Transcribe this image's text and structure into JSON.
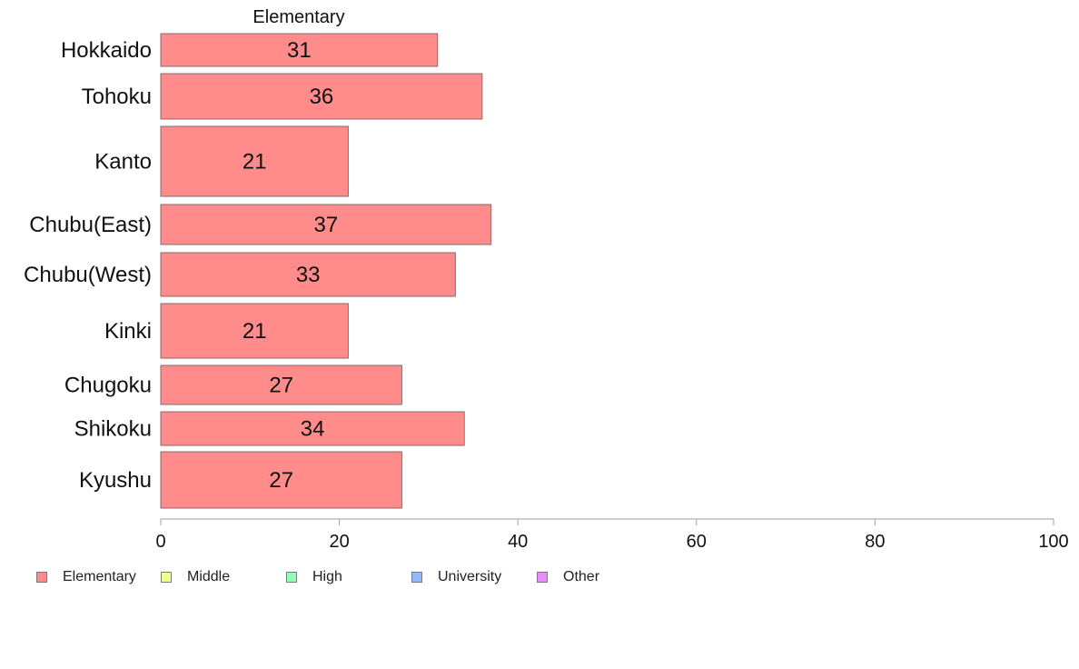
{
  "chart_data": {
    "type": "bar",
    "orientation": "horizontal",
    "title": "Elementary",
    "categories": [
      "Hokkaido",
      "Tohoku",
      "Kanto",
      "Chubu(East)",
      "Chubu(West)",
      "Kinki",
      "Chugoku",
      "Shikoku",
      "Kyushu"
    ],
    "series": [
      {
        "name": "Elementary",
        "values": [
          31,
          36,
          21,
          37,
          33,
          21,
          27,
          34,
          27
        ]
      }
    ],
    "data_labels": [
      "31",
      "36",
      "21",
      "37",
      "33",
      "21",
      "27",
      "34",
      "27"
    ],
    "xlim": [
      0,
      100
    ],
    "x_ticks": [
      0,
      20,
      40,
      60,
      80,
      100
    ],
    "grid": false,
    "legend_position": "bottom-left"
  },
  "legend": {
    "items": [
      {
        "label": "Elementary",
        "color": "#ff8b8b"
      },
      {
        "label": "Middle",
        "color": "#eeff8e"
      },
      {
        "label": "High",
        "color": "#8effb4"
      },
      {
        "label": "University",
        "color": "#8eb9ff"
      },
      {
        "label": "Other",
        "color": "#e98bff"
      }
    ]
  }
}
